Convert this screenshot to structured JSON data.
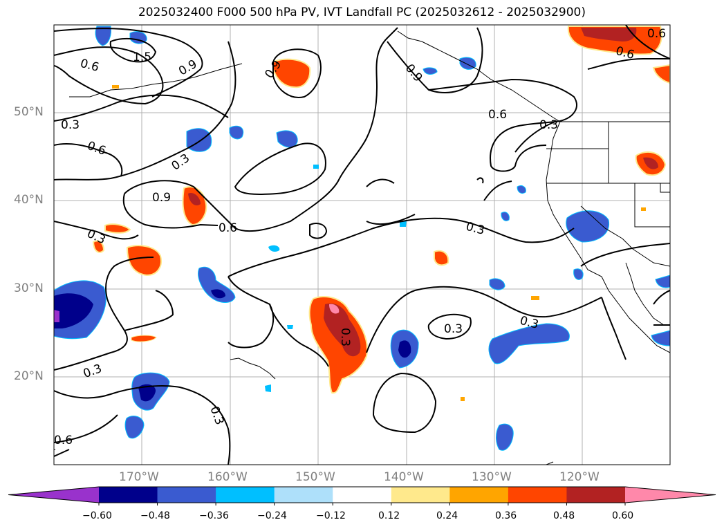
{
  "title": "2025032400 F000 500 hPa PV, IVT Landfall PC (2025032612 - 2025032900)",
  "lat_labels": [
    "50°N",
    "40°N",
    "30°N",
    "20°N"
  ],
  "lon_labels": [
    "170°W",
    "160°W",
    "150°W",
    "140°W",
    "130°W",
    "120°W"
  ],
  "contour_labels": [
    "1.5",
    "0.6",
    "0.9",
    "0.9",
    "0.9",
    "0.6",
    "0.6",
    "0.3",
    "0.6",
    "0.3",
    "0.9",
    "0.6",
    "0.3",
    "0.3",
    "0.3",
    "0.3",
    "0.3",
    "0.3",
    "0.3",
    "0.6",
    "0.3",
    "0.6"
  ],
  "colorbar": {
    "ticks": [
      "−0.60",
      "−0.48",
      "−0.36",
      "−0.24",
      "−0.12",
      "0.12",
      "0.24",
      "0.36",
      "0.48",
      "0.60"
    ],
    "colors": [
      "#9932cc",
      "#00008b",
      "#3a5bd0",
      "#00bfff",
      "#aee0fa",
      "#ffffff",
      "#ffe98c",
      "#ffa500",
      "#ff4500",
      "#b22222",
      "#ff88aa"
    ]
  }
}
